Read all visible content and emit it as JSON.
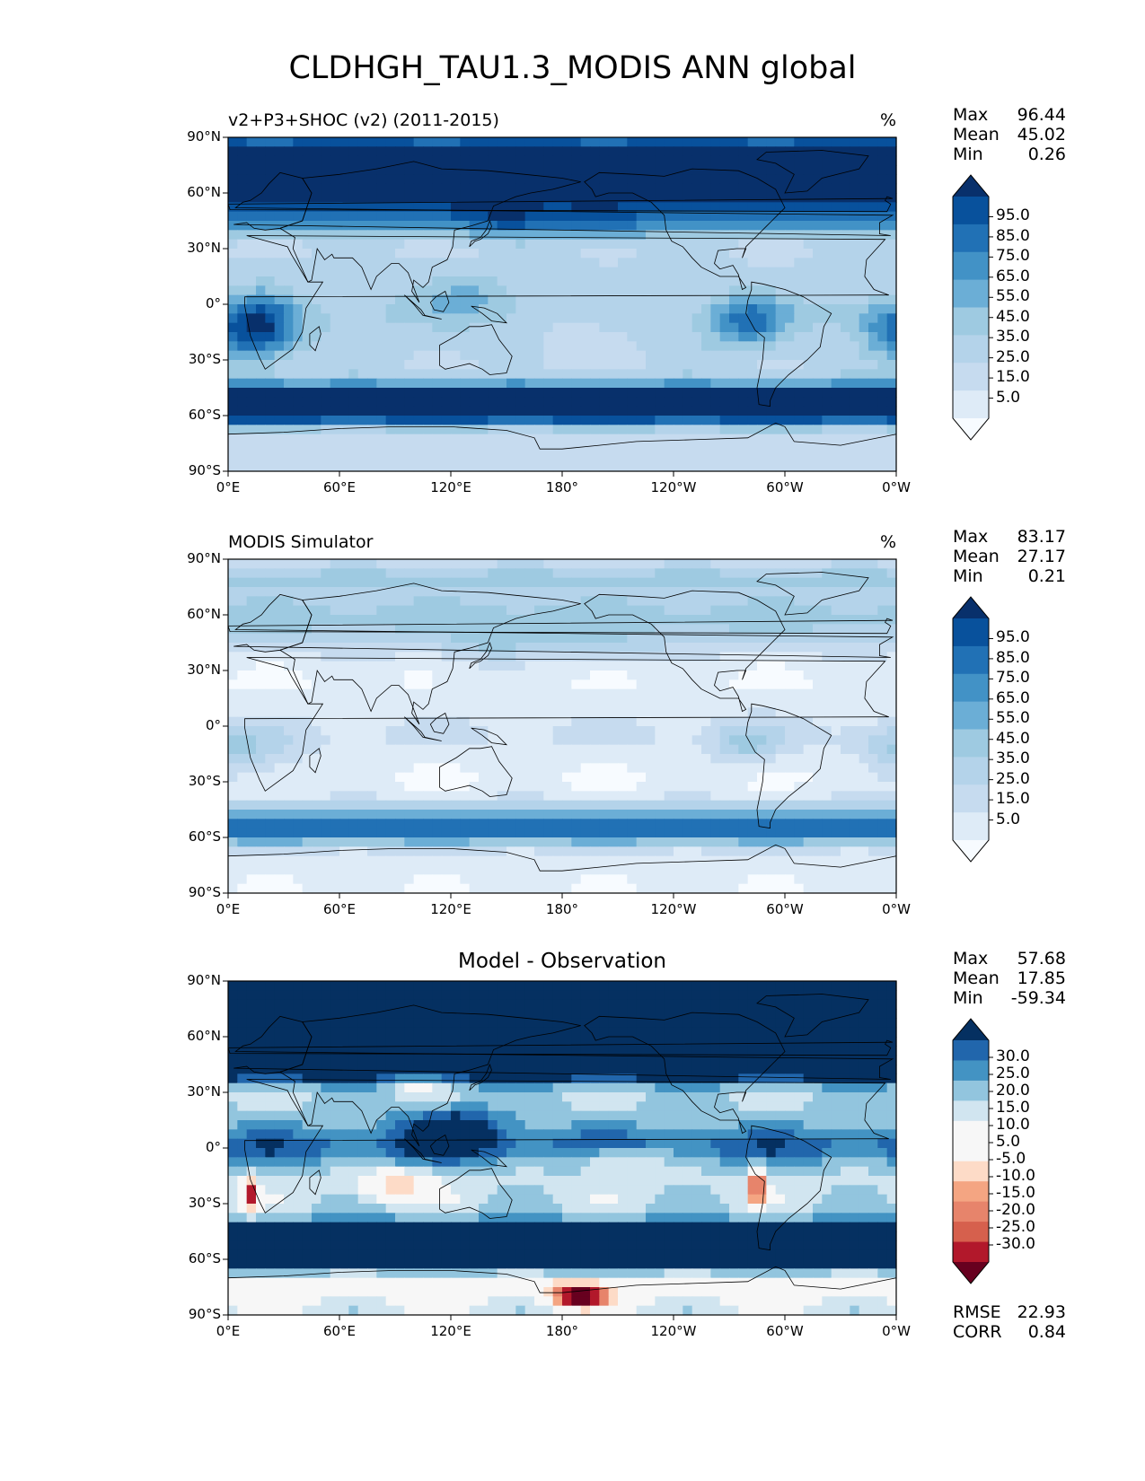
{
  "figure": {
    "title": "CLDHGH_TAU1.3_MODIS ANN global"
  },
  "colors": {
    "blues": [
      "#f7fbff",
      "#deebf7",
      "#c6dbef",
      "#b4d3ea",
      "#9ecae1",
      "#6baed6",
      "#4292c6",
      "#2171b5",
      "#08519c",
      "#08306b"
    ],
    "diff": [
      "#67001f",
      "#b2182b",
      "#d6604d",
      "#e7846b",
      "#f4a582",
      "#fddbc7",
      "#f7f7f7",
      "#f7f7f7",
      "#d1e5f0",
      "#92c5de",
      "#4393c3",
      "#2166ac",
      "#053061"
    ],
    "coast": "#000000"
  },
  "axes": {
    "lat_ticks": [
      "90°N",
      "60°N",
      "30°N",
      "0°",
      "30°S",
      "60°S",
      "90°S"
    ],
    "lon_ticks": [
      "0°E",
      "60°E",
      "120°E",
      "180°",
      "120°W",
      "60°W",
      "0°W"
    ]
  },
  "panels": [
    {
      "id": "test",
      "title_left": "v2+P3+SHOC (v2) (2011-2015)",
      "title_center": "",
      "unit": "%",
      "stats": [
        [
          "Max",
          "96.44"
        ],
        [
          "Mean",
          "45.02"
        ],
        [
          "Min",
          "0.26"
        ]
      ],
      "colorbar": {
        "cmap": "blues",
        "labels": [
          "95.0",
          "85.0",
          "75.0",
          "65.0",
          "55.0",
          "45.0",
          "35.0",
          "25.0",
          "15.0",
          "5.0"
        ],
        "extend": "both"
      },
      "field": {
        "base": 22,
        "bands": [
          [
            85,
            55,
            14
          ],
          [
            70,
            62,
            12
          ],
          [
            60,
            52,
            12
          ],
          [
            45,
            35,
            10
          ],
          [
            20,
            10,
            10
          ],
          [
            0,
            12,
            12
          ],
          [
            -10,
            10,
            10
          ],
          [
            -25,
            10,
            10
          ],
          [
            -50,
            62,
            10
          ],
          [
            -58,
            64,
            8
          ],
          [
            -80,
            5,
            8
          ]
        ],
        "blobs": [
          [
            5,
            -15,
            30,
            15,
            40
          ],
          [
            -80,
            -10,
            20,
            14,
            38
          ],
          [
            20,
            -10,
            -15,
            20,
            25
          ],
          [
            -170,
            -15,
            30,
            18,
            -10
          ],
          [
            150,
            45,
            25,
            10,
            20
          ],
          [
            -160,
            40,
            25,
            10,
            18
          ],
          [
            -25,
            -20,
            15,
            10,
            -12
          ],
          [
            130,
            5,
            30,
            12,
            18
          ]
        ]
      }
    },
    {
      "id": "ref",
      "title_left": "MODIS Simulator",
      "title_center": "",
      "unit": "%",
      "stats": [
        [
          "Max",
          "83.17"
        ],
        [
          "Mean",
          "27.17"
        ],
        [
          "Min",
          "0.21"
        ]
      ],
      "colorbar": {
        "cmap": "blues",
        "labels": [
          "95.0",
          "85.0",
          "75.0",
          "65.0",
          "55.0",
          "45.0",
          "35.0",
          "25.0",
          "15.0",
          "5.0"
        ],
        "extend": "both"
      },
      "field": {
        "base": 10,
        "bands": [
          [
            80,
            30,
            10
          ],
          [
            60,
            32,
            12
          ],
          [
            45,
            15,
            10
          ],
          [
            0,
            8,
            12
          ],
          [
            -10,
            6,
            10
          ],
          [
            -50,
            40,
            10
          ],
          [
            -58,
            42,
            8
          ],
          [
            -80,
            2,
            8
          ]
        ],
        "blobs": [
          [
            5,
            -15,
            28,
            14,
            25
          ],
          [
            -80,
            -10,
            18,
            12,
            24
          ],
          [
            -160,
            40,
            25,
            10,
            12
          ],
          [
            145,
            45,
            25,
            10,
            14
          ],
          [
            130,
            25,
            20,
            10,
            8
          ],
          [
            -25,
            -20,
            15,
            10,
            -6
          ]
        ]
      }
    },
    {
      "id": "diff",
      "title_left": "",
      "title_center": "Model - Observation",
      "unit": "",
      "stats": [
        [
          "Max",
          "57.68"
        ],
        [
          "Mean",
          "17.85"
        ],
        [
          "Min",
          "-59.34"
        ]
      ],
      "colorbar": {
        "cmap": "diff",
        "labels": [
          "30.0",
          "25.0",
          "20.0",
          "15.0",
          "10.0",
          "5.0",
          "-5.0",
          "-10.0",
          "-15.0",
          "-20.0",
          "-25.0",
          "-30.0"
        ],
        "extend": "both"
      },
      "field": {
        "base": 8,
        "bands": [
          [
            85,
            25,
            8
          ],
          [
            70,
            30,
            12
          ],
          [
            55,
            32,
            10
          ],
          [
            45,
            28,
            10
          ],
          [
            15,
            4,
            10
          ],
          [
            0,
            14,
            10
          ],
          [
            -50,
            32,
            10
          ],
          [
            -58,
            30,
            8
          ],
          [
            -72,
            -8,
            6
          ],
          [
            -80,
            -4,
            8
          ]
        ],
        "blobs": [
          [
            90,
            -20,
            18,
            8,
            -18
          ],
          [
            -150,
            -5,
            25,
            6,
            -14
          ],
          [
            -75,
            -20,
            4,
            10,
            -40
          ],
          [
            12,
            -25,
            4,
            8,
            -35
          ],
          [
            -170,
            -80,
            15,
            6,
            -45
          ],
          [
            120,
            10,
            25,
            12,
            20
          ],
          [
            100,
            35,
            15,
            6,
            -10
          ],
          [
            -45,
            70,
            15,
            8,
            -12
          ]
        ]
      },
      "footer_stats": [
        [
          "RMSE",
          "22.93"
        ],
        [
          "CORR",
          "0.84"
        ]
      ]
    }
  ]
}
